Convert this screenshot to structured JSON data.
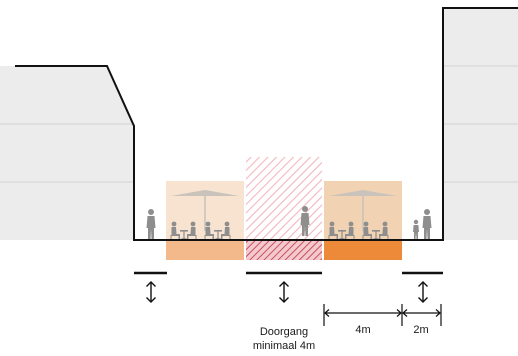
{
  "labels": {
    "passage_line1": "Doorgang",
    "passage_line2": "minimaal 4m",
    "width_terrace": "4m",
    "width_pavement": "2m"
  },
  "colors": {
    "building_fill": "#ececec",
    "building_line": "#d2d2d2",
    "outline": "#111111",
    "terrace_light": "#f7e3cf",
    "terrace_light_base": "#f4b98a",
    "terrace_dark": "#f1d2b2",
    "terrace_dark_base": "#ec8a3a",
    "passage_hatch": "#f2b7bf",
    "passage_hatch_dark": "#c8505f",
    "figure": "#8e8e8e",
    "umbrella": "#c9c3bb"
  },
  "icons": {
    "vertical_arrow": "double-vertical-arrow-icon",
    "horizontal_dimension": "double-horizontal-arrow-icon",
    "pedestrian": "pedestrian-icon",
    "umbrella": "umbrella-icon",
    "table": "cafe-table-icon"
  }
}
